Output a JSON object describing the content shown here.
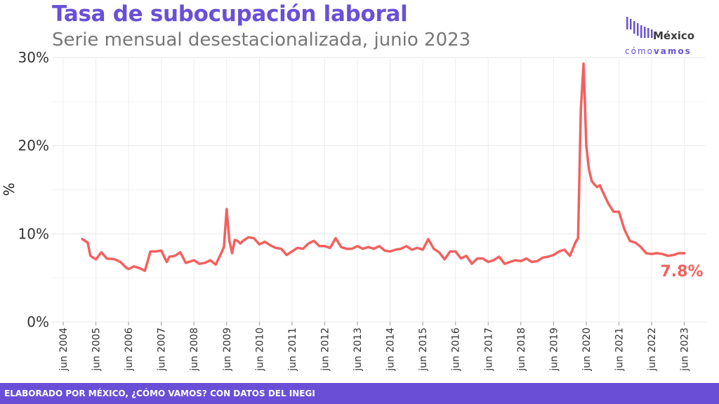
{
  "header": {
    "title": "Tasa de subocupación laboral",
    "subtitle": "Serie mensual desestacionalizada, junio 2023"
  },
  "logo": {
    "brand_top": "México",
    "brand_como": "cómo",
    "brand_vamos": "vamos"
  },
  "footer": {
    "text": "ELABORADO POR MÉXICO, ¿CÓMO VAMOS? CON DATOS DEL INEGI"
  },
  "chart_data": {
    "type": "line",
    "title": "Tasa de subocupación laboral",
    "subtitle": "Serie mensual desestacionalizada, junio 2023",
    "xlabel": "",
    "ylabel": "%",
    "ylim": [
      0,
      30
    ],
    "yticks": [
      0,
      10,
      20,
      30
    ],
    "ytick_labels": [
      "0%",
      "10%",
      "20%",
      "30%"
    ],
    "xlim": [
      "2004-06",
      "2023-06"
    ],
    "xticks": [
      "2004-06",
      "2005-06",
      "2006-06",
      "2007-06",
      "2008-06",
      "2009-06",
      "2010-06",
      "2011-06",
      "2012-06",
      "2013-06",
      "2014-06",
      "2015-06",
      "2016-06",
      "2017-06",
      "2018-06",
      "2019-06",
      "2020-06",
      "2021-06",
      "2022-06",
      "2023-06"
    ],
    "xtick_labels": [
      "jun 2004",
      "jun 2005",
      "jun 2006",
      "jun 2007",
      "jun 2008",
      "jun 2009",
      "jun 2010",
      "jun 2011",
      "jun 2012",
      "jun 2013",
      "jun 2014",
      "jun 2015",
      "jun 2016",
      "jun 2017",
      "jun 2018",
      "jun 2019",
      "jun 2020",
      "jun 2021",
      "jun 2022",
      "jun 2023"
    ],
    "grid": true,
    "line_color": "#f2615f",
    "accent_color": "#6a4fd6",
    "end_label": "7.8%",
    "series": [
      {
        "x": [
          "2005-01",
          "2005-03",
          "2005-04",
          "2005-06",
          "2005-08",
          "2005-10",
          "2006-01",
          "2006-03",
          "2006-05",
          "2006-06",
          "2006-08",
          "2006-10",
          "2006-12",
          "2007-02",
          "2007-04",
          "2007-06",
          "2007-08",
          "2007-09",
          "2007-11",
          "2008-01",
          "2008-03",
          "2008-05",
          "2008-06",
          "2008-08",
          "2008-10",
          "2008-12",
          "2009-02",
          "2009-04",
          "2009-05",
          "2009-06",
          "2009-07",
          "2009-08",
          "2009-09",
          "2009-10",
          "2009-11",
          "2009-12",
          "2010-02",
          "2010-04",
          "2010-06",
          "2010-08",
          "2010-10",
          "2010-12",
          "2011-02",
          "2011-04",
          "2011-06",
          "2011-08",
          "2011-10",
          "2011-12",
          "2012-02",
          "2012-04",
          "2012-06",
          "2012-08",
          "2012-10",
          "2012-12",
          "2013-02",
          "2013-04",
          "2013-06",
          "2013-08",
          "2013-10",
          "2013-12",
          "2014-02",
          "2014-04",
          "2014-06",
          "2014-08",
          "2014-10",
          "2014-12",
          "2015-02",
          "2015-04",
          "2015-06",
          "2015-08",
          "2015-10",
          "2015-12",
          "2016-02",
          "2016-04",
          "2016-06",
          "2016-08",
          "2016-10",
          "2016-12",
          "2017-02",
          "2017-04",
          "2017-06",
          "2017-08",
          "2017-10",
          "2017-12",
          "2018-02",
          "2018-04",
          "2018-06",
          "2018-08",
          "2018-10",
          "2018-12",
          "2019-02",
          "2019-04",
          "2019-06",
          "2019-08",
          "2019-10",
          "2019-12",
          "2020-02",
          "2020-03",
          "2020-04",
          "2020-05",
          "2020-06",
          "2020-07",
          "2020-08",
          "2020-09",
          "2020-10",
          "2020-11",
          "2020-12",
          "2021-02",
          "2021-04",
          "2021-06",
          "2021-08",
          "2021-10",
          "2021-12",
          "2022-02",
          "2022-04",
          "2022-06",
          "2022-08",
          "2022-10",
          "2022-12",
          "2023-02",
          "2023-04",
          "2023-06"
        ],
        "values": [
          9.4,
          9.0,
          7.5,
          7.1,
          7.9,
          7.2,
          7.1,
          6.8,
          6.2,
          6.0,
          6.3,
          6.1,
          5.8,
          8.0,
          8.0,
          8.1,
          6.8,
          7.4,
          7.5,
          7.9,
          6.7,
          6.9,
          7.0,
          6.6,
          6.7,
          7.0,
          6.5,
          7.8,
          8.5,
          12.8,
          9.2,
          7.8,
          9.3,
          9.2,
          8.9,
          9.2,
          9.6,
          9.5,
          8.8,
          9.1,
          8.7,
          8.4,
          8.3,
          7.6,
          8.0,
          8.4,
          8.3,
          8.9,
          9.2,
          8.6,
          8.6,
          8.4,
          9.5,
          8.5,
          8.3,
          8.3,
          8.6,
          8.3,
          8.5,
          8.3,
          8.6,
          8.1,
          8.0,
          8.2,
          8.3,
          8.6,
          8.2,
          8.4,
          8.2,
          9.4,
          8.3,
          7.9,
          7.1,
          8.0,
          8.0,
          7.2,
          7.5,
          6.6,
          7.2,
          7.2,
          6.8,
          7.0,
          7.4,
          6.6,
          6.8,
          7.0,
          6.9,
          7.2,
          6.8,
          6.9,
          7.3,
          7.4,
          7.6,
          8.0,
          8.2,
          7.5,
          9.0,
          9.5,
          24.0,
          29.3,
          20.0,
          17.3,
          16.0,
          15.6,
          15.3,
          15.5,
          14.8,
          13.5,
          12.5,
          12.5,
          10.5,
          9.2,
          9.0,
          8.5,
          7.8,
          7.7,
          7.8,
          7.7,
          7.5,
          7.6,
          7.8,
          7.8
        ]
      }
    ]
  }
}
